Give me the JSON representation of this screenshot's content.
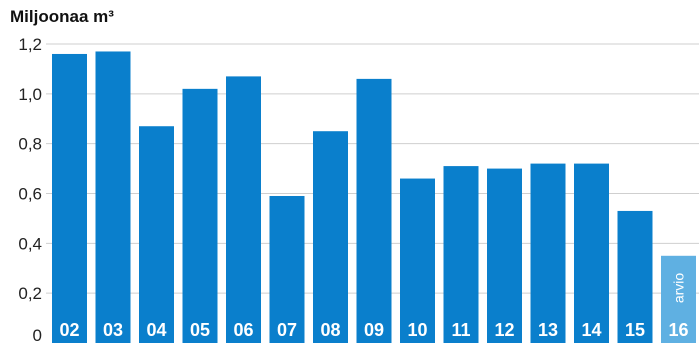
{
  "chart_data": {
    "type": "bar",
    "title": "",
    "xlabel": "",
    "ylabel": "Miljoonaa m³",
    "ylim": [
      0,
      1.2
    ],
    "yticks": [
      "0",
      "0,2",
      "0,4",
      "0,6",
      "0,8",
      "1,0",
      "1,2"
    ],
    "grid": true,
    "legend": "none",
    "categories": [
      "02",
      "03",
      "04",
      "05",
      "06",
      "07",
      "08",
      "09",
      "10",
      "11",
      "12",
      "13",
      "14",
      "15",
      "16"
    ],
    "values": [
      1.16,
      1.17,
      0.87,
      1.02,
      1.07,
      0.59,
      0.85,
      1.06,
      0.66,
      0.71,
      0.7,
      0.72,
      0.72,
      0.53,
      0.35
    ],
    "colors": {
      "bar": "#0a7fcc",
      "estimate_bar": "#5fb0e2",
      "grid": "#cfcfcf"
    },
    "estimate_category": "16",
    "estimate_label": "arvio"
  }
}
